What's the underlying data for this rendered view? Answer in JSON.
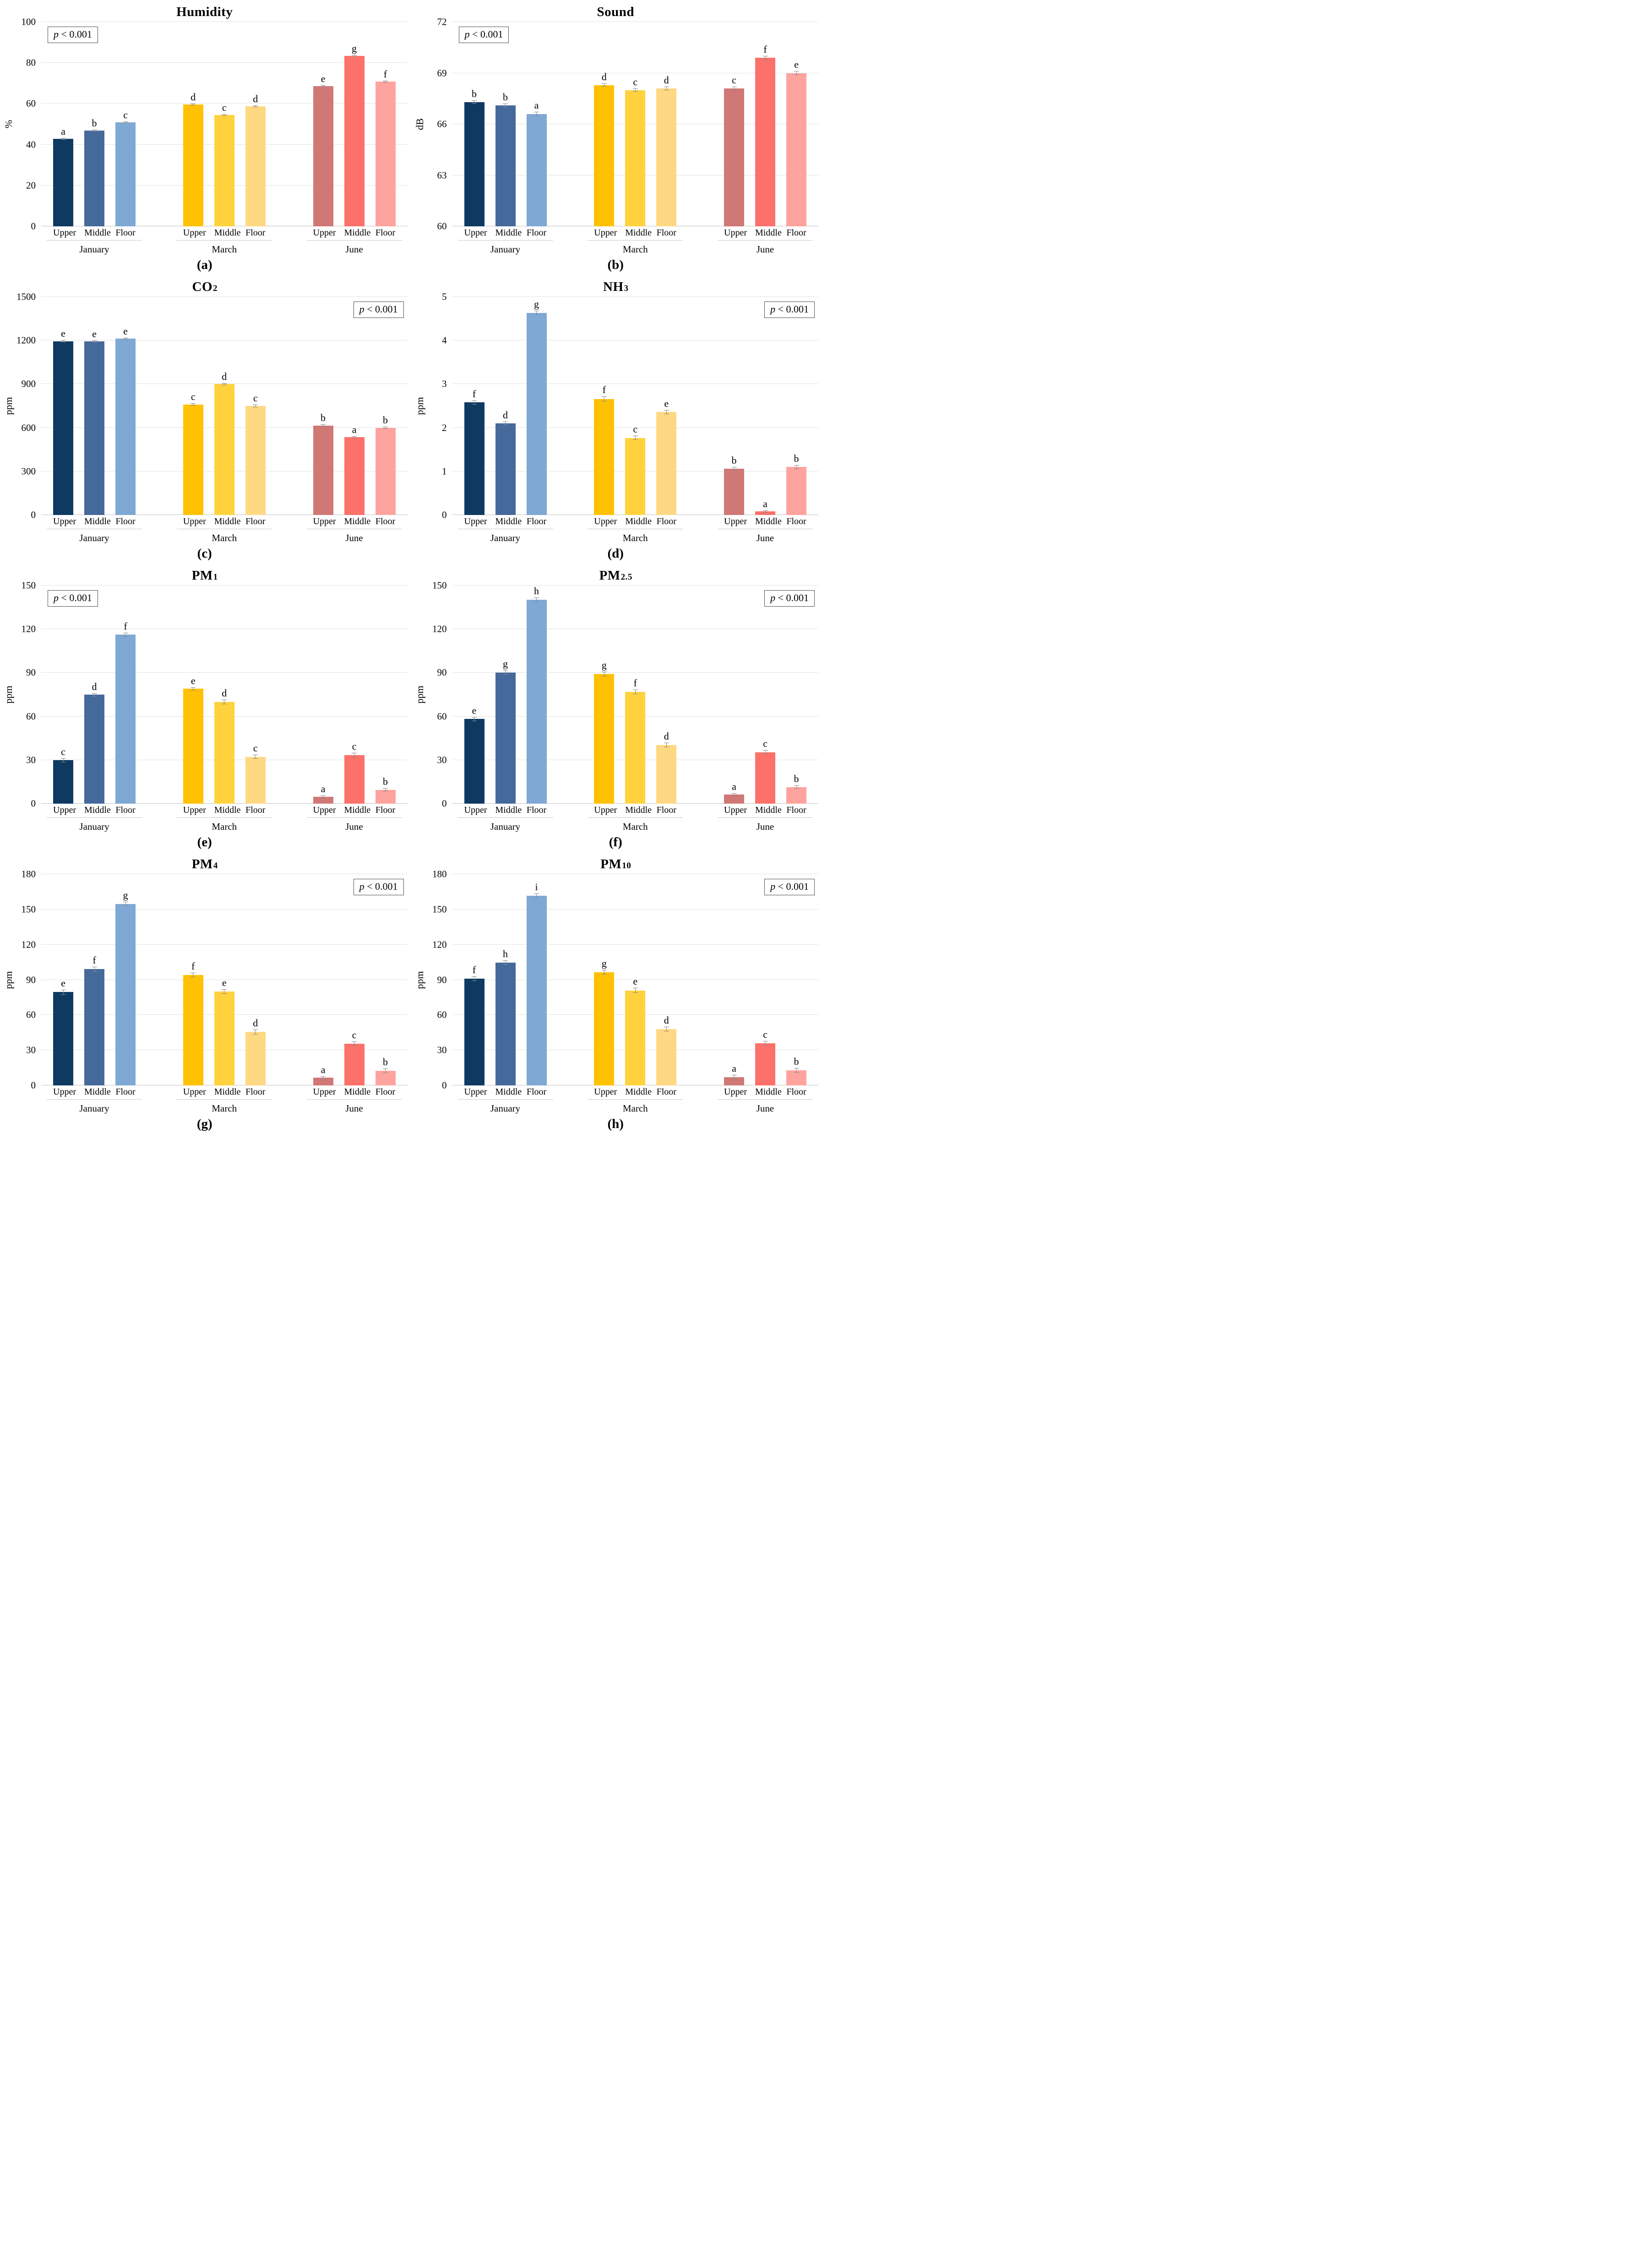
{
  "page": {
    "background": "#ffffff"
  },
  "annotation": {
    "variable": "p",
    "comparator": " < 0.001"
  },
  "positions": [
    "Upper",
    "Middle",
    "Floor"
  ],
  "months": [
    "January",
    "March",
    "June"
  ],
  "colors": {
    "january": [
      "#0E3A62",
      "#46699B",
      "#7FA8D4"
    ],
    "march": [
      "#FFC104",
      "#FFD23E",
      "#FFD883"
    ],
    "june": [
      "#D07876",
      "#FC7169",
      "#FFA39E"
    ],
    "error_bar": "#8A8A8A",
    "gridline": "#E2E2E2",
    "baseline": "#C2C2C2"
  },
  "chart_data": [
    {
      "panel_label": "(a)",
      "type": "bar",
      "title_base": "Humidity",
      "title_sub": "",
      "ylabel": "%",
      "ylim": [
        0,
        100
      ],
      "ystep": 20,
      "yticks": [
        0,
        20,
        40,
        60,
        80,
        100
      ],
      "p_annotation": "p < 0.001",
      "p_box_position": "left",
      "categories": [
        "Upper",
        "Middle",
        "Floor"
      ],
      "groups": [
        {
          "month": "January",
          "values": [
            42.8,
            46.8,
            50.8
          ],
          "errors": [
            0.3,
            0.3,
            0.3
          ],
          "letters": [
            "a",
            "b",
            "c"
          ]
        },
        {
          "month": "March",
          "values": [
            59.7,
            54.5,
            58.7
          ],
          "errors": [
            0.4,
            0.4,
            0.3
          ],
          "letters": [
            "d",
            "c",
            "d"
          ]
        },
        {
          "month": "June",
          "values": [
            68.7,
            83.5,
            70.8
          ],
          "errors": [
            0.3,
            0.4,
            0.5
          ],
          "letters": [
            "e",
            "g",
            "f"
          ]
        }
      ]
    },
    {
      "panel_label": "(b)",
      "type": "bar",
      "title_base": "Sound",
      "title_sub": "",
      "ylabel": "dB",
      "ylim": [
        60,
        72
      ],
      "ystep": 3,
      "yticks": [
        60,
        63,
        66,
        69,
        72
      ],
      "p_annotation": "p < 0.001",
      "p_box_position": "left",
      "categories": [
        "Upper",
        "Middle",
        "Floor"
      ],
      "groups": [
        {
          "month": "January",
          "values": [
            67.3,
            67.1,
            66.6
          ],
          "errors": [
            0.1,
            0.1,
            0.12
          ],
          "letters": [
            "b",
            "b",
            "a"
          ]
        },
        {
          "month": "March",
          "values": [
            68.3,
            68.0,
            68.1
          ],
          "errors": [
            0.1,
            0.1,
            0.1
          ],
          "letters": [
            "d",
            "c",
            "d"
          ]
        },
        {
          "month": "June",
          "values": [
            68.1,
            69.9,
            69.0
          ],
          "errors": [
            0.1,
            0.12,
            0.12
          ],
          "letters": [
            "c",
            "f",
            "e"
          ]
        }
      ]
    },
    {
      "panel_label": "(c)",
      "type": "bar",
      "title_base": "CO",
      "title_sub": "2",
      "ylabel": "ppm",
      "ylim": [
        0,
        1500
      ],
      "ystep": 300,
      "yticks": [
        0,
        300,
        600,
        900,
        1200,
        1500
      ],
      "p_annotation": "p < 0.001",
      "p_box_position": "right",
      "categories": [
        "Upper",
        "Middle",
        "Floor"
      ],
      "groups": [
        {
          "month": "January",
          "values": [
            1195,
            1193,
            1212
          ],
          "errors": [
            8,
            8,
            8
          ],
          "letters": [
            "e",
            "e",
            "e"
          ]
        },
        {
          "month": "March",
          "values": [
            760,
            900,
            750
          ],
          "errors": [
            8,
            8,
            8
          ],
          "letters": [
            "c",
            "d",
            "c"
          ]
        },
        {
          "month": "June",
          "values": [
            615,
            535,
            600
          ],
          "errors": [
            8,
            8,
            8
          ],
          "letters": [
            "b",
            "a",
            "b"
          ]
        }
      ]
    },
    {
      "panel_label": "(d)",
      "type": "bar",
      "title_base": "NH",
      "title_sub": "3",
      "ylabel": "ppm",
      "ylim": [
        0,
        5
      ],
      "ystep": 1,
      "yticks": [
        0,
        1,
        2,
        3,
        4,
        5
      ],
      "p_annotation": "p < 0.001",
      "p_box_position": "right",
      "categories": [
        "Upper",
        "Middle",
        "Floor"
      ],
      "groups": [
        {
          "month": "January",
          "values": [
            2.58,
            2.1,
            4.63
          ],
          "errors": [
            0.05,
            0.04,
            0.05
          ],
          "letters": [
            "f",
            "d",
            "g"
          ]
        },
        {
          "month": "March",
          "values": [
            2.66,
            1.77,
            2.36
          ],
          "errors": [
            0.06,
            0.05,
            0.05
          ],
          "letters": [
            "f",
            "c",
            "e"
          ]
        },
        {
          "month": "June",
          "values": [
            1.06,
            0.08,
            1.1
          ],
          "errors": [
            0.04,
            0.03,
            0.05
          ],
          "letters": [
            "b",
            "a",
            "b"
          ]
        }
      ]
    },
    {
      "panel_label": "(e)",
      "type": "bar",
      "title_base": "PM",
      "title_sub": "1",
      "ylabel": "ppm",
      "ylim": [
        0,
        150
      ],
      "ystep": 30,
      "yticks": [
        0,
        30,
        60,
        90,
        120,
        150
      ],
      "p_annotation": "p < 0.001",
      "p_box_position": "left",
      "categories": [
        "Upper",
        "Middle",
        "Floor"
      ],
      "groups": [
        {
          "month": "January",
          "values": [
            29.8,
            74.9,
            116.2
          ],
          "errors": [
            1.5,
            1.2,
            1.5
          ],
          "letters": [
            "c",
            "d",
            "f"
          ]
        },
        {
          "month": "March",
          "values": [
            79.0,
            70.0,
            32.3
          ],
          "errors": [
            1.2,
            1.5,
            1.5
          ],
          "letters": [
            "e",
            "d",
            "c"
          ]
        },
        {
          "month": "June",
          "values": [
            4.6,
            33.4,
            9.6
          ],
          "errors": [
            1.2,
            1.5,
            1.2
          ],
          "letters": [
            "a",
            "c",
            "b"
          ]
        }
      ]
    },
    {
      "panel_label": "(f)",
      "type": "bar",
      "title_base": "PM",
      "title_sub": "2.5",
      "ylabel": "ppm",
      "ylim": [
        0,
        150
      ],
      "ystep": 30,
      "yticks": [
        0,
        30,
        60,
        90,
        120,
        150
      ],
      "p_annotation": "p < 0.001",
      "p_box_position": "right",
      "categories": [
        "Upper",
        "Middle",
        "Floor"
      ],
      "groups": [
        {
          "month": "January",
          "values": [
            58.2,
            90.2,
            140.2
          ],
          "errors": [
            1.5,
            1.5,
            1.5
          ],
          "letters": [
            "e",
            "g",
            "h"
          ]
        },
        {
          "month": "March",
          "values": [
            89.2,
            76.9,
            40.4
          ],
          "errors": [
            1.5,
            1.5,
            1.5
          ],
          "letters": [
            "g",
            "f",
            "d"
          ]
        },
        {
          "month": "June",
          "values": [
            6.2,
            35.4,
            11.5
          ],
          "errors": [
            1.2,
            1.5,
            1.2
          ],
          "letters": [
            "a",
            "c",
            "b"
          ]
        }
      ]
    },
    {
      "panel_label": "(g)",
      "type": "bar",
      "title_base": "PM",
      "title_sub": "4",
      "ylabel": "ppm",
      "ylim": [
        0,
        180
      ],
      "ystep": 30,
      "yticks": [
        0,
        30,
        60,
        90,
        120,
        150,
        180
      ],
      "p_annotation": "p < 0.001",
      "p_box_position": "right",
      "categories": [
        "Upper",
        "Middle",
        "Floor"
      ],
      "groups": [
        {
          "month": "January",
          "values": [
            79.5,
            99.0,
            154.5
          ],
          "errors": [
            2,
            2,
            2
          ],
          "letters": [
            "e",
            "f",
            "g"
          ]
        },
        {
          "month": "March",
          "values": [
            94.0,
            80.0,
            45.5
          ],
          "errors": [
            2,
            2,
            2
          ],
          "letters": [
            "f",
            "e",
            "d"
          ]
        },
        {
          "month": "June",
          "values": [
            6.5,
            35.5,
            12.5
          ],
          "errors": [
            1.5,
            2,
            2
          ],
          "letters": [
            "a",
            "c",
            "b"
          ]
        }
      ]
    },
    {
      "panel_label": "(h)",
      "type": "bar",
      "title_base": "PM",
      "title_sub": "10",
      "ylabel": "ppm",
      "ylim": [
        0,
        180
      ],
      "ystep": 30,
      "yticks": [
        0,
        30,
        60,
        90,
        120,
        150,
        180
      ],
      "p_annotation": "p < 0.001",
      "p_box_position": "right",
      "categories": [
        "Upper",
        "Middle",
        "Floor"
      ],
      "groups": [
        {
          "month": "January",
          "values": [
            91.0,
            104.5,
            161.5
          ],
          "errors": [
            2,
            2,
            2
          ],
          "letters": [
            "f",
            "h",
            "i"
          ]
        },
        {
          "month": "March",
          "values": [
            96.5,
            81.0,
            48.0
          ],
          "errors": [
            2,
            2,
            2
          ],
          "letters": [
            "g",
            "e",
            "d"
          ]
        },
        {
          "month": "June",
          "values": [
            7.0,
            36.0,
            13.0
          ],
          "errors": [
            1.8,
            2,
            2
          ],
          "letters": [
            "a",
            "c",
            "b"
          ]
        }
      ]
    }
  ]
}
